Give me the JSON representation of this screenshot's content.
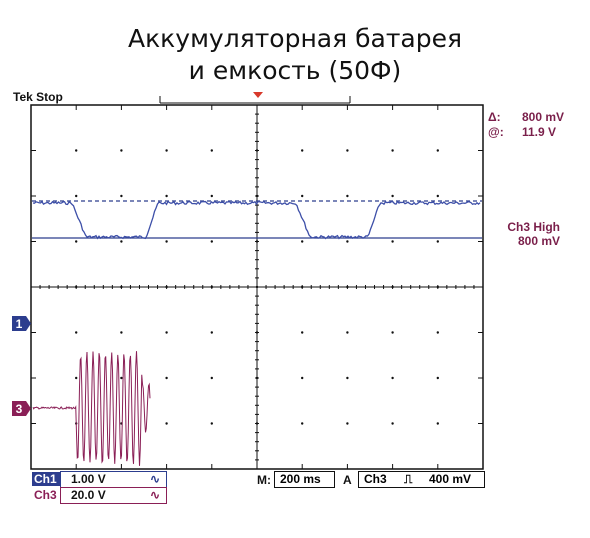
{
  "title": {
    "line1": "Аккумуляторная батарея",
    "line2": "и емкость (50Ф)"
  },
  "header": {
    "status": "Tek Stop"
  },
  "cursor": {
    "delta_label": "Δ:",
    "delta_value": "800 mV",
    "at_label": "@:",
    "at_value": "11.9 V"
  },
  "side": {
    "ch3_line1": "Ch3 High",
    "ch3_line2": "800 mV"
  },
  "markers": {
    "ch1": "1",
    "ch3": "3"
  },
  "bottom": {
    "ch1_label": "Ch1",
    "ch1_value": "1.00 V",
    "ch3_label": "Ch3",
    "ch3_value": "20.0 V",
    "time_label": "M:",
    "time_value": "200 ms",
    "trig_mode": "A",
    "trig_source": "Ch3",
    "trig_level": "400 mV"
  },
  "colors": {
    "ch1_trace": "#3d4fa8",
    "ch3_trace": "#8a1f56",
    "text_accent": "#7a1f4a"
  }
}
